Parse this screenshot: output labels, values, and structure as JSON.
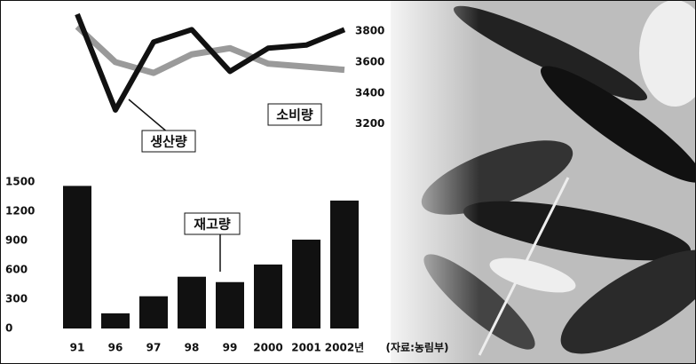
{
  "chart_data": [
    {
      "type": "line",
      "series": [
        {
          "name": "생산량",
          "color": "#111111",
          "values": [
            3910,
            3290,
            3730,
            3810,
            3540,
            3690,
            3710,
            3810
          ]
        },
        {
          "name": "소비량",
          "color": "#9a9a9a",
          "values": [
            3830,
            3600,
            3530,
            3650,
            3690,
            3590,
            3570,
            3550
          ]
        }
      ],
      "y2lim": [
        3100,
        3950
      ],
      "y2ticks": [
        3200,
        3400,
        3600,
        3800
      ]
    },
    {
      "type": "bar",
      "annotation": "재고량",
      "categories": [
        "91",
        "96",
        "97",
        "98",
        "99",
        "2000",
        "2001",
        "2002년"
      ],
      "values": [
        1460,
        155,
        330,
        530,
        475,
        655,
        910,
        1310
      ],
      "color": "#111111",
      "ylim": [
        0,
        1500
      ],
      "yticks": [
        0,
        300,
        600,
        900,
        1200,
        1500
      ],
      "source": "(자료:농림부)"
    }
  ]
}
